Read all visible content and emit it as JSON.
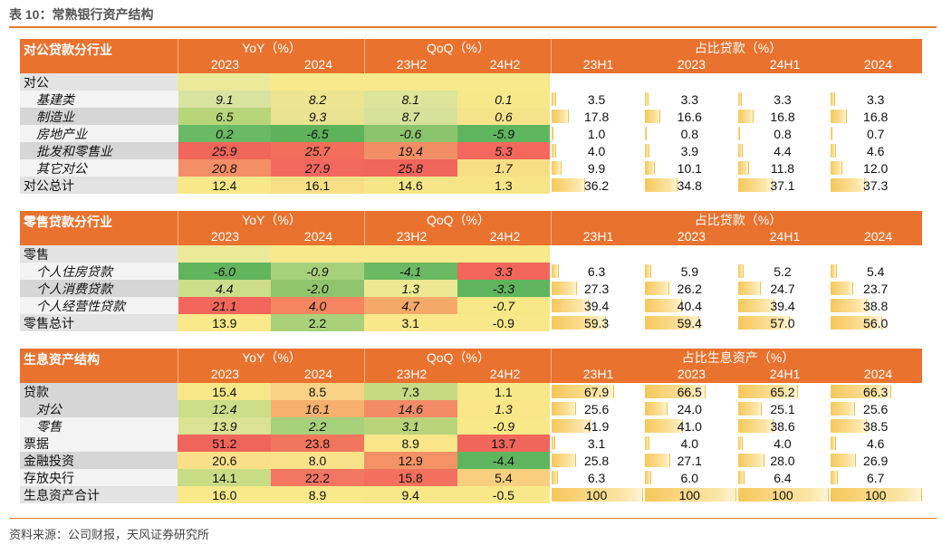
{
  "title": "表 10：常熟银行资产结构",
  "source": "资料来源：公司财报，天风证券研究所",
  "headers": {
    "yoy": "YoY（%）",
    "qoq": "QoQ（%）",
    "yoy_years": [
      "2023",
      "2024"
    ],
    "qoq_years": [
      "23H2",
      "24H2"
    ],
    "share_years": [
      "23H1",
      "2023",
      "24H1",
      "2024"
    ]
  },
  "sections": [
    {
      "label": "对公贷款分行业",
      "share_label": "占比贷款（%）",
      "group": "对公",
      "rows": [
        {
          "label": "基建类",
          "yoy": [
            "9.1",
            "8.2"
          ],
          "qoq": [
            "8.1",
            "0.1"
          ],
          "share": [
            "3.5",
            "3.3",
            "3.3",
            "3.3"
          ],
          "yoy_colors": [
            "#d9e3a0",
            "#ece491"
          ],
          "qoq_colors": [
            "#dde49b",
            "#f6e98a"
          ],
          "type": "sub"
        },
        {
          "label": "制造业",
          "yoy": [
            "6.5",
            "9.3"
          ],
          "qoq": [
            "8.7",
            "0.6"
          ],
          "share": [
            "17.8",
            "16.6",
            "16.8",
            "16.8"
          ],
          "yoy_colors": [
            "#b7d679",
            "#e9e291"
          ],
          "qoq_colors": [
            "#d6e19a",
            "#f5e389"
          ],
          "type": "sub"
        },
        {
          "label": "房地产业",
          "yoy": [
            "0.2",
            "-6.5"
          ],
          "qoq": [
            "-0.6",
            "-5.9"
          ],
          "share": [
            "1.0",
            "0.8",
            "0.8",
            "0.7"
          ],
          "yoy_colors": [
            "#6ab964",
            "#5eb35a"
          ],
          "qoq_colors": [
            "#8cc46e",
            "#5fb55d"
          ],
          "type": "sub"
        },
        {
          "label": "批发和零售业",
          "yoy": [
            "25.9",
            "25.7"
          ],
          "qoq": [
            "19.4",
            "5.3"
          ],
          "share": [
            "4.0",
            "3.9",
            "4.4",
            "4.6"
          ],
          "yoy_colors": [
            "#f0665a",
            "#f36d5b"
          ],
          "qoq_colors": [
            "#f28e66",
            "#f3675d"
          ],
          "type": "sub"
        },
        {
          "label": "其它对公",
          "yoy": [
            "20.8",
            "27.9"
          ],
          "qoq": [
            "25.8",
            "1.7"
          ],
          "share": [
            "9.9",
            "10.1",
            "11.8",
            "12.0"
          ],
          "yoy_colors": [
            "#f48e66",
            "#f26860"
          ],
          "qoq_colors": [
            "#f0655c",
            "#f7de84"
          ],
          "type": "sub"
        },
        {
          "label": "对公总计",
          "yoy": [
            "12.4",
            "16.1"
          ],
          "qoq": [
            "14.6",
            "1.3"
          ],
          "share": [
            "36.2",
            "34.8",
            "37.1",
            "37.3"
          ],
          "yoy_colors": [
            "#f8e889",
            "#f8df85"
          ],
          "qoq_colors": [
            "#f7e688",
            "#f7e688"
          ],
          "type": "total"
        }
      ]
    },
    {
      "label": "零售贷款分行业",
      "share_label": "占比贷款（%）",
      "group": "零售",
      "rows": [
        {
          "label": "个人住房贷款",
          "yoy": [
            "-6.0",
            "-0.9"
          ],
          "qoq": [
            "-4.1",
            "3.3"
          ],
          "share": [
            "6.3",
            "5.9",
            "5.2",
            "5.4"
          ],
          "yoy_colors": [
            "#62b45d",
            "#a7d07a"
          ],
          "qoq_colors": [
            "#6bba63",
            "#f2665b"
          ],
          "type": "sub"
        },
        {
          "label": "个人消费贷款",
          "yoy": [
            "4.4",
            "-2.0"
          ],
          "qoq": [
            "1.3",
            "-3.3"
          ],
          "share": [
            "27.3",
            "26.2",
            "24.7",
            "23.7"
          ],
          "yoy_colors": [
            "#cedd8a",
            "#8fc46d"
          ],
          "qoq_colors": [
            "#ece992",
            "#5fb55d"
          ],
          "type": "sub"
        },
        {
          "label": "个人经营性贷款",
          "yoy": [
            "21.1",
            "4.0"
          ],
          "qoq": [
            "4.7",
            "-0.7"
          ],
          "share": [
            "39.4",
            "40.4",
            "39.4",
            "38.8"
          ],
          "yoy_colors": [
            "#f2665b",
            "#f48560"
          ],
          "qoq_colors": [
            "#f4a969",
            "#f7e887"
          ],
          "type": "sub"
        },
        {
          "label": "零售总计",
          "yoy": [
            "13.9",
            "2.2"
          ],
          "qoq": [
            "3.1",
            "-0.9"
          ],
          "share": [
            "59.3",
            "59.4",
            "57.0",
            "56.0"
          ],
          "yoy_colors": [
            "#f9e98a",
            "#a9d17a"
          ],
          "qoq_colors": [
            "#f8e88a",
            "#f8e88a"
          ],
          "type": "total"
        }
      ]
    },
    {
      "label": "生息资产结构",
      "share_label": "占比生息资产（%）",
      "group": null,
      "rows": [
        {
          "label": "贷款",
          "yoy": [
            "15.4",
            "8.5"
          ],
          "qoq": [
            "7.3",
            "1.1"
          ],
          "share": [
            "67.9",
            "66.5",
            "65.2",
            "66.3"
          ],
          "yoy_colors": [
            "#f8e788",
            "#f9d286"
          ],
          "qoq_colors": [
            "#c6da83",
            "#f7e888"
          ],
          "type": "main"
        },
        {
          "label": "对公",
          "yoy": [
            "12.4",
            "16.1"
          ],
          "qoq": [
            "14.6",
            "1.3"
          ],
          "share": [
            "25.6",
            "24.0",
            "25.1",
            "25.6"
          ],
          "yoy_colors": [
            "#cddd8a",
            "#f8b06e"
          ],
          "qoq_colors": [
            "#f28b66",
            "#f8e688"
          ],
          "type": "sub"
        },
        {
          "label": "零售",
          "yoy": [
            "13.9",
            "2.2"
          ],
          "qoq": [
            "3.1",
            "-0.9"
          ],
          "share": [
            "41.9",
            "41.0",
            "38.6",
            "38.5"
          ],
          "yoy_colors": [
            "#dbe294",
            "#a7d07a"
          ],
          "qoq_colors": [
            "#b8d57b",
            "#f8e888"
          ],
          "type": "sub"
        },
        {
          "label": "票据",
          "yoy": [
            "51.2",
            "23.8"
          ],
          "qoq": [
            "8.9",
            "13.7"
          ],
          "share": [
            "3.1",
            "4.0",
            "4.0",
            "4.6"
          ],
          "yoy_colors": [
            "#f0655b",
            "#f2755e"
          ],
          "qoq_colors": [
            "#f8e689",
            "#f0665b"
          ],
          "type": "main"
        },
        {
          "label": "金融投资",
          "yoy": [
            "20.6",
            "8.0"
          ],
          "qoq": [
            "12.9",
            "-4.4"
          ],
          "share": [
            "25.8",
            "27.1",
            "28.0",
            "26.9"
          ],
          "yoy_colors": [
            "#f9e088",
            "#f9e38a"
          ],
          "qoq_colors": [
            "#f29265",
            "#5fb55d"
          ],
          "type": "main"
        },
        {
          "label": "存放央行",
          "yoy": [
            "14.1",
            "22.2"
          ],
          "qoq": [
            "15.8",
            "5.4"
          ],
          "share": [
            "6.3",
            "6.0",
            "6.4",
            "6.7"
          ],
          "yoy_colors": [
            "#c8db85",
            "#f27662"
          ],
          "qoq_colors": [
            "#f2705d",
            "#f7cf7e"
          ],
          "type": "main"
        },
        {
          "label": "生息资产合计",
          "yoy": [
            "16.0",
            "8.9"
          ],
          "qoq": [
            "9.4",
            "-0.5"
          ],
          "share": [
            "100",
            "100",
            "100",
            "100"
          ],
          "yoy_colors": [
            "#f9e98a",
            "#f9e98a"
          ],
          "qoq_colors": [
            "#f8e88a",
            "#f8e88a"
          ],
          "type": "total"
        }
      ]
    }
  ]
}
